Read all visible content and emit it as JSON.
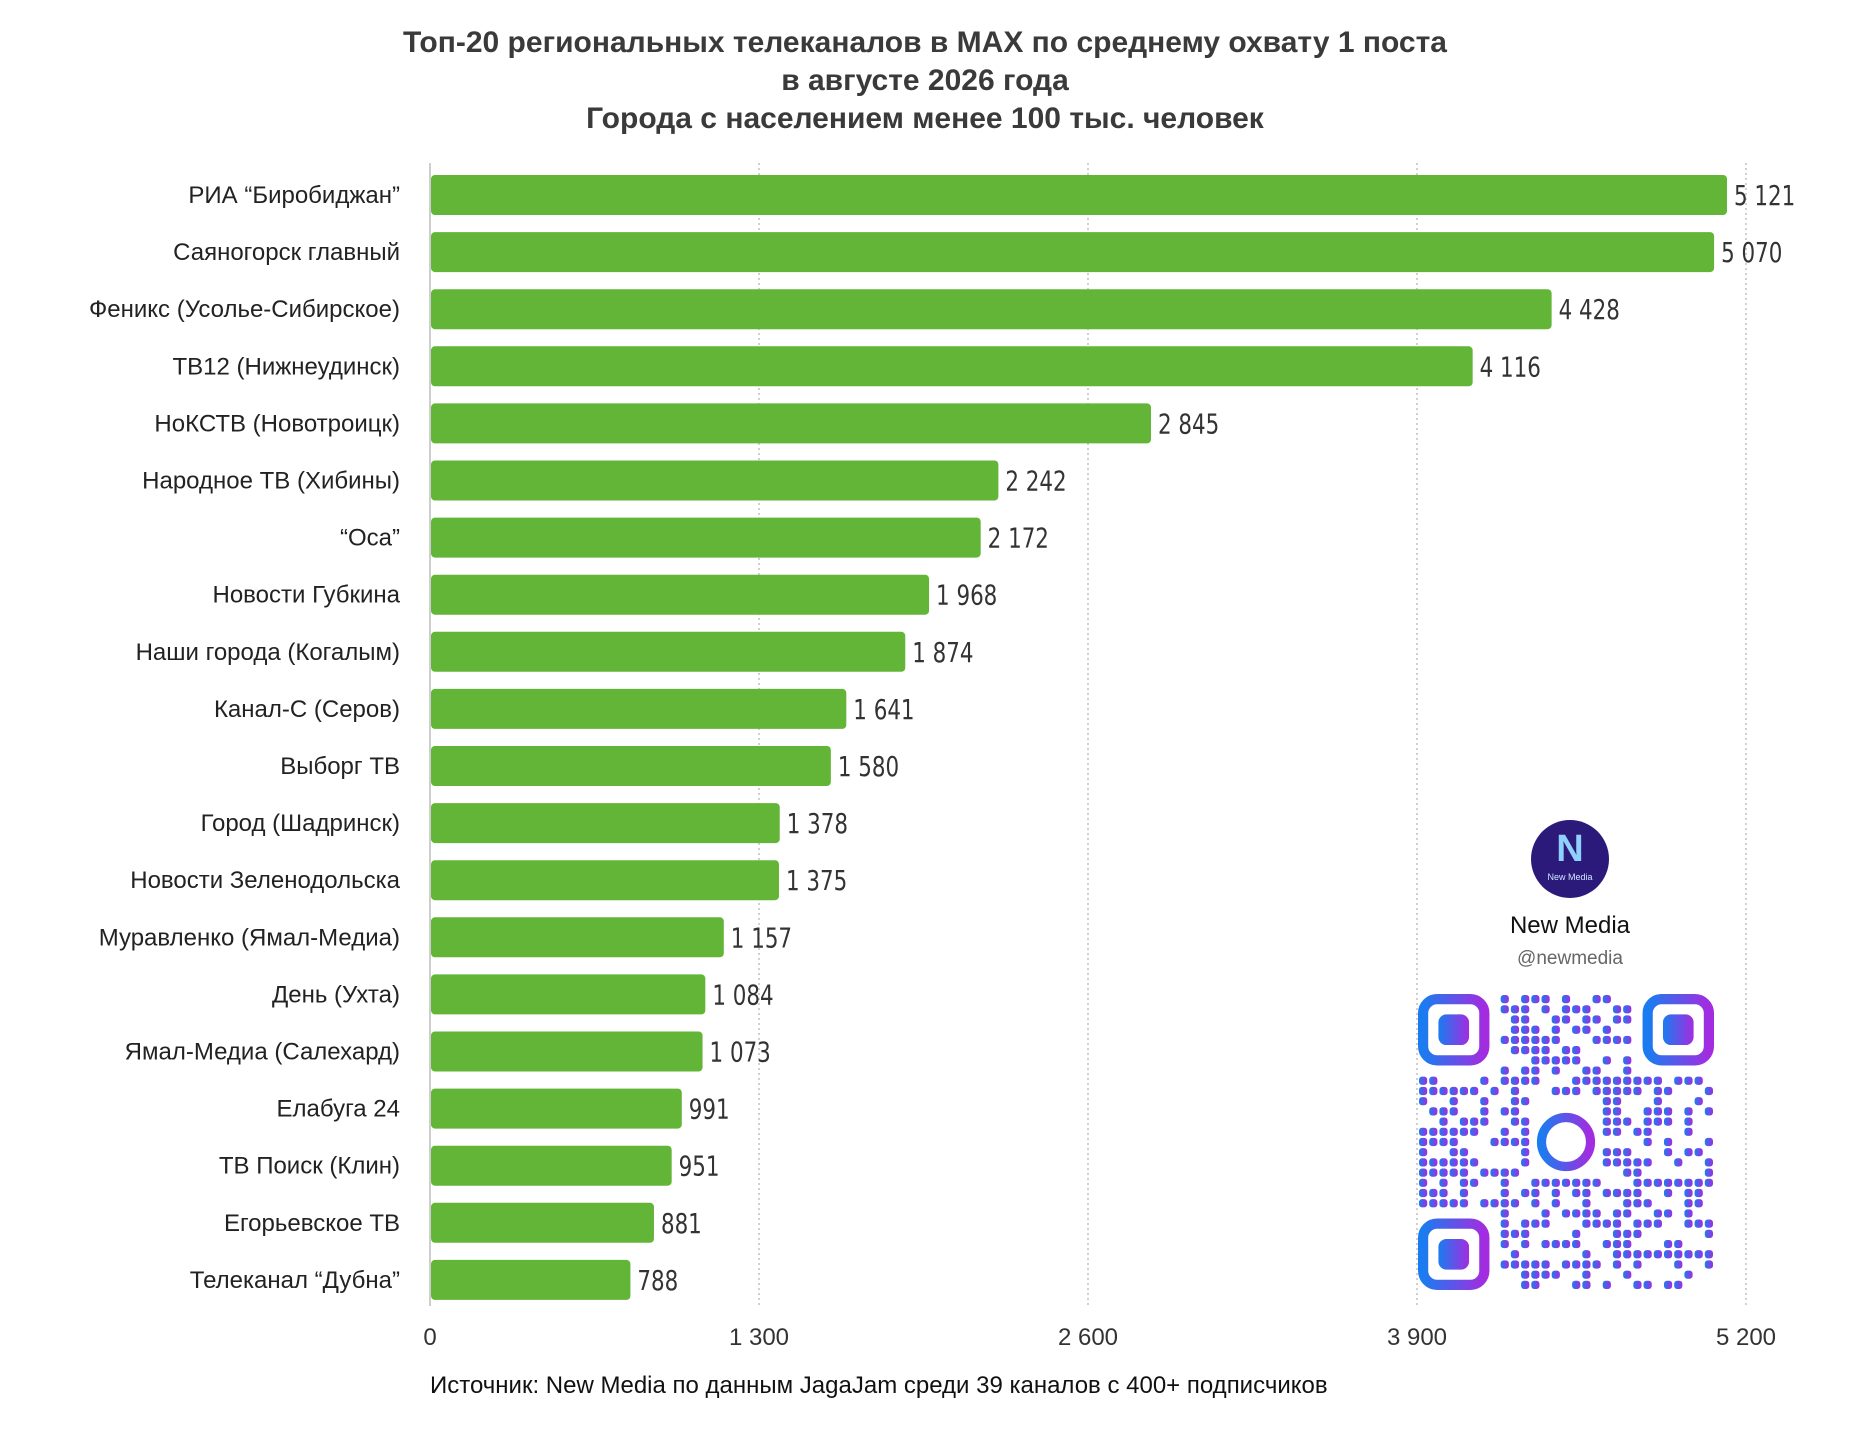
{
  "header": {
    "title_lines": [
      "Топ-20 региональных телеканалов в MAX по среднему охвату 1 поста",
      "в августе 2026 года",
      "Города с населением менее 100 тыс. человек"
    ]
  },
  "chart_data": {
    "type": "bar",
    "orientation": "horizontal",
    "title": "Топ-20 региональных телеканалов в MAX по среднему охвату 1 поста в августе 2026 года. Города с населением менее 100 тыс. человек",
    "categories": [
      "РИА “Биробиджан”",
      "Саяногорск главный",
      "Феникс (Усолье-Сибирское)",
      "ТВ12 (Нижнеудинск)",
      "НоКСТВ (Новотроицк)",
      "Народное ТВ (Хибины)",
      "“Оса”",
      "Новости Губкина",
      "Наши города (Когалым)",
      "Канал-С (Серов)",
      "Выборг ТВ",
      "Город (Шадринск)",
      "Новости Зеленодольска",
      "Муравленко (Ямал-Медиа)",
      "День (Ухта)",
      "Ямал-Медиа (Салехард)",
      "Елабуга 24",
      "ТВ Поиск (Клин)",
      "Егорьевское ТВ",
      "Телеканал “Дубна”"
    ],
    "values": [
      5121,
      5070,
      4428,
      4116,
      2845,
      2242,
      2172,
      1968,
      1874,
      1641,
      1580,
      1378,
      1375,
      1157,
      1084,
      1073,
      991,
      951,
      881,
      788
    ],
    "value_labels": [
      "5 121",
      "5 070",
      "4 428",
      "4 116",
      "2 845",
      "2 242",
      "2 172",
      "1 968",
      "1 874",
      "1 641",
      "1 580",
      "1 378",
      "1 375",
      "1 157",
      "1 084",
      "1 073",
      "991",
      "951",
      "881",
      "788"
    ],
    "xlim": [
      0,
      5200
    ],
    "xticks": [
      0,
      1300,
      2600,
      3900,
      5200
    ],
    "xtick_labels": [
      "0",
      "1 300",
      "2 600",
      "3 900",
      "5 200"
    ],
    "xlabel": "",
    "ylabel": "",
    "grid": "vertical dotted",
    "legend": "none",
    "bar_color": "#62b537"
  },
  "footer": {
    "source": "Источник: New Media по данным JagaJam среди 39 каналов с 400+ подписчиков"
  },
  "brand": {
    "logo_icon": "new-media-logo-icon",
    "logo_letter": "N",
    "logo_small_text": "New Media",
    "name": "New Media",
    "handle": "@newmedia",
    "qr_icon": "qr-code-icon",
    "colors": {
      "logo_bg": "#2b1a7a",
      "qr_start": "#1a7cf0",
      "qr_end": "#a32ce0"
    }
  }
}
